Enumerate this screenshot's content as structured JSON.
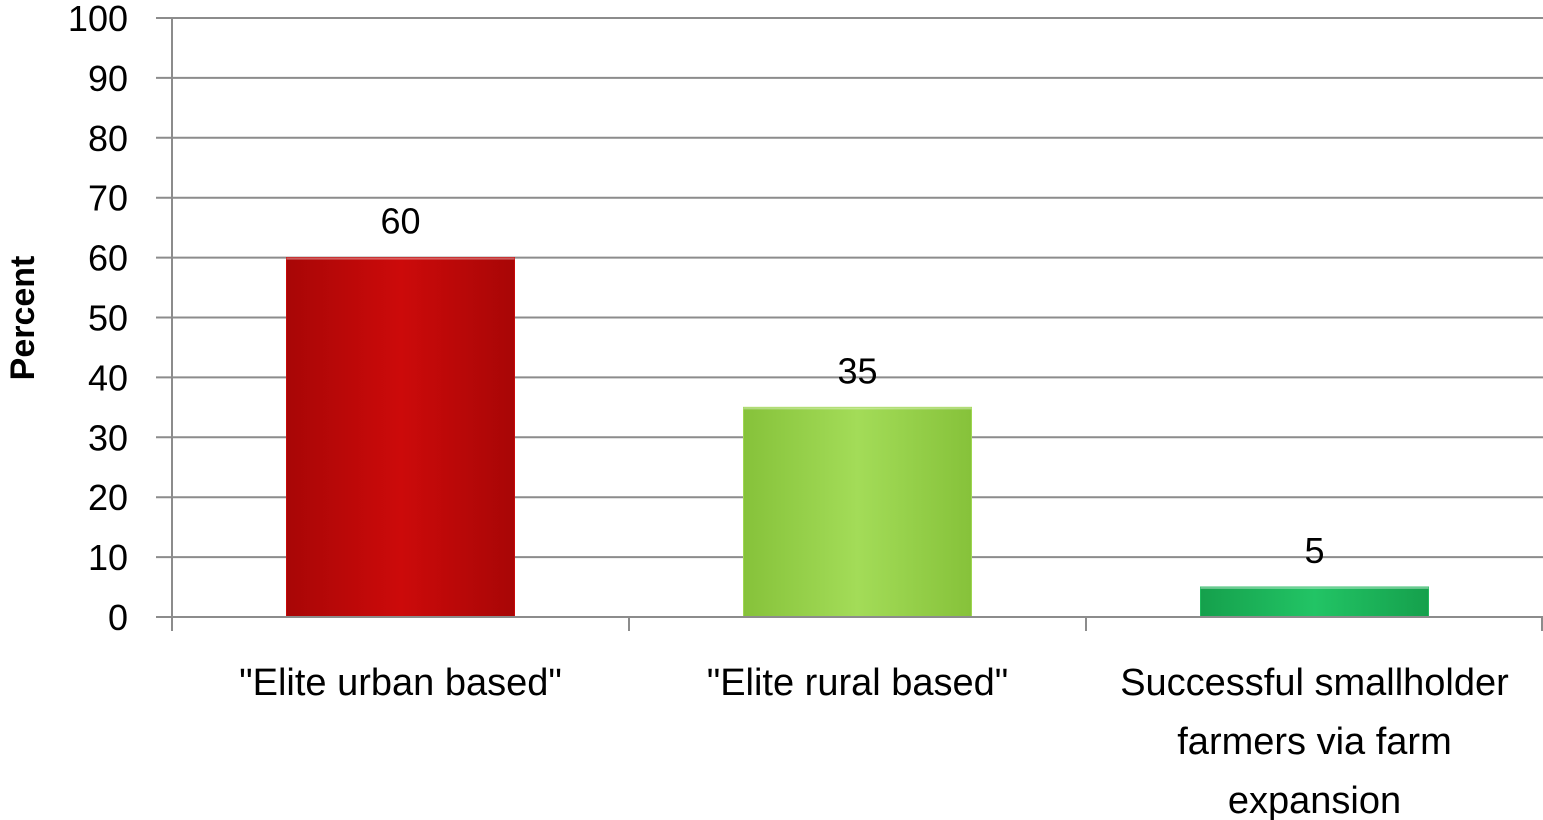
{
  "chart_data": {
    "type": "bar",
    "categories": [
      [
        "\"Elite urban based\""
      ],
      [
        "\"Elite rural based\""
      ],
      [
        "Successful  smallholder",
        "farmers via farm",
        "expansion"
      ]
    ],
    "values": [
      60,
      35,
      5
    ],
    "data_labels": [
      "60",
      "35",
      "5"
    ],
    "bar_colors": [
      "#c80808",
      "#9ed650",
      "#1fb85c"
    ],
    "title": "",
    "xlabel": "",
    "ylabel": "Percent",
    "ylim": [
      0,
      100
    ],
    "yticks": [
      0,
      10,
      20,
      30,
      40,
      50,
      60,
      70,
      80,
      90,
      100
    ],
    "grid": true,
    "legend": "none"
  }
}
